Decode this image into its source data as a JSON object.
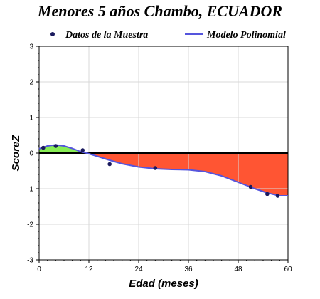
{
  "chart_data": {
    "type": "line",
    "title": "Menores 5 años Chambo, ECUADOR",
    "xlabel": "Edad (meses)",
    "ylabel": "ScoreZ",
    "xlim": [
      0,
      60
    ],
    "ylim": [
      -3,
      3
    ],
    "xticks": [
      0,
      12,
      24,
      36,
      48,
      60
    ],
    "yticks": [
      -3,
      -2,
      -1,
      0,
      1,
      2,
      3
    ],
    "grid": true,
    "legend_position": "top",
    "series": [
      {
        "name": "Datos de la Muestra",
        "kind": "scatter",
        "color": "#1a1a5e",
        "x": [
          1,
          4,
          10.5,
          17,
          28,
          51,
          55,
          57.5
        ],
        "y": [
          0.15,
          0.2,
          0.08,
          -0.31,
          -0.42,
          -0.95,
          -1.15,
          -1.2
        ]
      },
      {
        "name": "Modelo Polinomial",
        "kind": "line",
        "color": "#5555dd",
        "x": [
          0,
          2,
          4,
          6,
          8,
          10,
          11.5,
          14,
          17,
          20,
          24,
          28,
          32,
          36,
          40,
          44,
          48,
          52,
          55,
          58,
          60
        ],
        "y": [
          0.12,
          0.2,
          0.23,
          0.2,
          0.13,
          0.04,
          0,
          -0.09,
          -0.2,
          -0.3,
          -0.39,
          -0.44,
          -0.46,
          -0.47,
          -0.52,
          -0.64,
          -0.82,
          -1.0,
          -1.12,
          -1.2,
          -1.2
        ]
      }
    ],
    "fill": {
      "positive_color": "#88ee55",
      "negative_color": "#ff5533"
    }
  }
}
